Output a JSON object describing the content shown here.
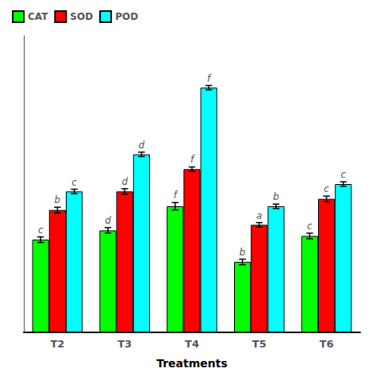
{
  "chart_data": {
    "type": "bar",
    "categories": [
      "T2",
      "T3",
      "T4",
      "T5",
      "T6"
    ],
    "xlabel": "Treatments",
    "series": [
      {
        "name": "CAT",
        "color": "#00ff00",
        "values": [
          0.5,
          0.55,
          0.68,
          0.38,
          0.52
        ],
        "errors": [
          0.015,
          0.015,
          0.02,
          0.015,
          0.015
        ],
        "annotations": [
          "c",
          "d",
          "f",
          "b",
          "c"
        ]
      },
      {
        "name": "SOD",
        "color": "#ff0000",
        "values": [
          0.66,
          0.76,
          0.88,
          0.58,
          0.72
        ],
        "errors": [
          0.015,
          0.015,
          0.012,
          0.012,
          0.015
        ],
        "annotations": [
          "b",
          "d",
          "f",
          "a",
          "c"
        ]
      },
      {
        "name": "POD",
        "color": "#00ffff",
        "values": [
          0.76,
          0.96,
          1.32,
          0.68,
          0.8
        ],
        "errors": [
          0.012,
          0.012,
          0.012,
          0.012,
          0.012
        ],
        "annotations": [
          "c",
          "d",
          "f",
          "b",
          "c"
        ]
      }
    ],
    "ylim": [
      0,
      1.6
    ],
    "tick_labels": "x",
    "grid": false,
    "legend": "upper left"
  }
}
